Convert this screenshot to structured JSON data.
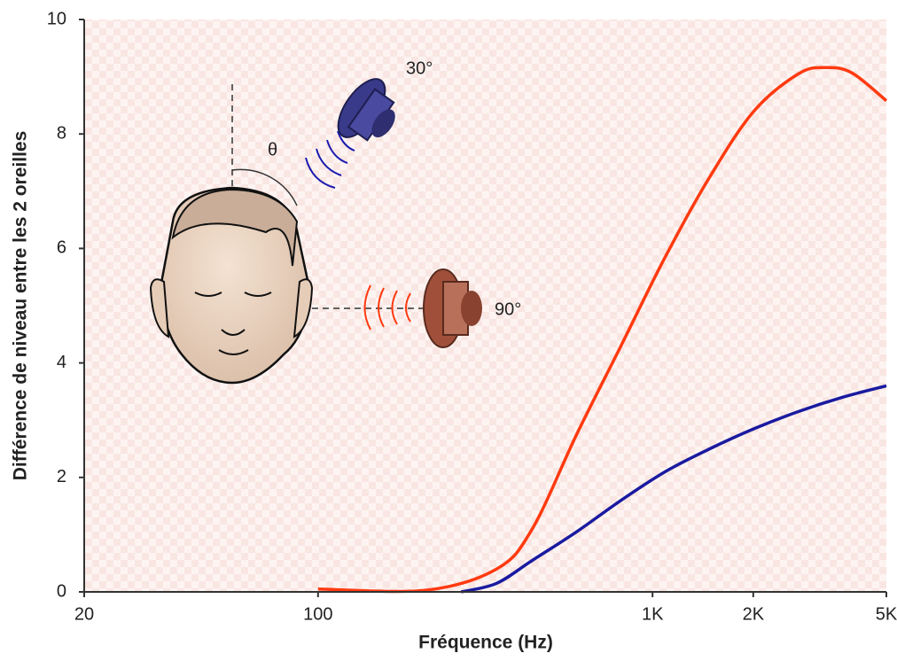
{
  "chart_data": {
    "type": "line",
    "xlabel": "Fréquence (Hz)",
    "ylabel": "Différence de niveau entre les 2 oreilles",
    "xscale": "log",
    "xlim": [
      20,
      5000
    ],
    "xticks": [
      20,
      100,
      {
        "value": 1000,
        "label": "1K"
      },
      {
        "value": 2000,
        "label": "2K"
      },
      {
        "value": 5000,
        "label": "5K"
      }
    ],
    "ylim": [
      0,
      10
    ],
    "yticks": [
      0,
      2,
      4,
      6,
      8,
      10
    ],
    "annotations": [
      "30°",
      "90°",
      "θ"
    ],
    "series": [
      {
        "color": "#ff3a10",
        "x": [
          100,
          210,
          342,
          437,
          593,
          805,
          1091,
          1483,
          2010,
          2728,
          3275,
          3936,
          5000
        ],
        "values": [
          0.05,
          0.03,
          0.4,
          1.1,
          2.75,
          4.3,
          5.85,
          7.25,
          8.4,
          9.05,
          9.16,
          9.07,
          8.58
        ]
      },
      {
        "color": "#1a1aa0",
        "x": [
          268,
          342,
          437,
          593,
          805,
          1091,
          1483,
          2010,
          2728,
          3700,
          5000
        ],
        "values": [
          0,
          0.15,
          0.55,
          1.05,
          1.6,
          2.1,
          2.5,
          2.85,
          3.15,
          3.4,
          3.6
        ]
      }
    ]
  }
}
